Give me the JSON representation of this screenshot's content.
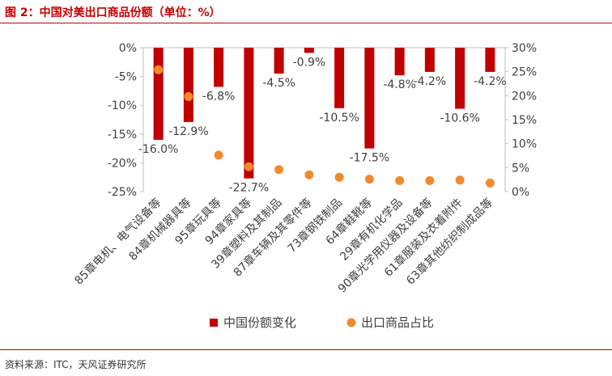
{
  "figure": {
    "title": "图 2：中国对美出口商品份额（单位：%）",
    "source": "资料来源：ITC，天风证券研究所"
  },
  "colors": {
    "bar": "#c00000",
    "dot": "#f08a2c",
    "accent": "#c00000"
  },
  "chart_data": {
    "type": "bar",
    "categories": [
      "85章电机、电气设备等",
      "84章机械器具等",
      "95章玩具等",
      "94章家具等",
      "39章塑料及其制品",
      "87章车辆及其零件等",
      "73章钢铁制品",
      "64章鞋靴等",
      "29章有机化学品",
      "90章光学用仪器及设备等",
      "61章服装及衣着附件",
      "63章其他纺织制成品等"
    ],
    "series": [
      {
        "name": "中国份额变化",
        "type": "bar",
        "axis": "left",
        "values": [
          -16.0,
          -12.9,
          -6.8,
          -22.7,
          -4.5,
          -0.9,
          -10.5,
          -17.5,
          -4.8,
          -4.2,
          -10.6,
          -4.2
        ],
        "labels": [
          "-16.0%",
          "-12.9%",
          "-6.8%",
          "-22.7%",
          "-4.5%",
          "-0.9%",
          "-10.5%",
          "-17.5%",
          "-4.8%",
          "-4.2%",
          "-10.6%",
          "-4.2%"
        ]
      },
      {
        "name": "出口商品占比",
        "type": "scatter",
        "axis": "right",
        "values": [
          25.4,
          19.8,
          7.6,
          5.2,
          4.6,
          3.5,
          3.0,
          2.6,
          2.3,
          2.3,
          2.4,
          1.8
        ]
      }
    ],
    "y_left": {
      "lim": [
        -25,
        0
      ],
      "ticks": [
        0,
        -5,
        -10,
        -15,
        -20,
        -25
      ],
      "tick_labels": [
        "0%",
        "-5%",
        "-10%",
        "-15%",
        "-20%",
        "-25%"
      ]
    },
    "y_right": {
      "lim": [
        0,
        30
      ],
      "ticks": [
        0,
        5,
        10,
        15,
        20,
        25,
        30
      ],
      "tick_labels": [
        "0%",
        "5%",
        "10%",
        "15%",
        "20%",
        "25%",
        "30%"
      ]
    },
    "legend": "bottom-center",
    "grid": false
  }
}
